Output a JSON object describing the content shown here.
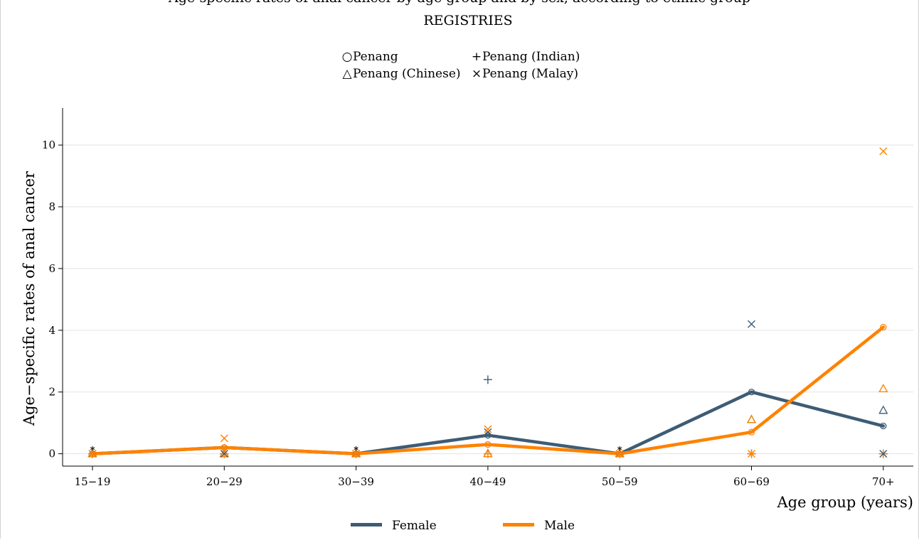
{
  "chart_data": {
    "type": "line",
    "title": "Age-specific rates of anal cancer by age group and by sex, according to ethnic group",
    "subtitle": "REGISTRIES",
    "xlabel": "Age group (years)",
    "ylabel": "Age−specific rates of anal cancer",
    "categories": [
      "15−19",
      "20−29",
      "30−39",
      "40−49",
      "50−59",
      "60−69",
      "70+"
    ],
    "ylim": [
      -0.4,
      11.2
    ],
    "yticks": [
      0,
      2,
      4,
      6,
      8,
      10
    ],
    "grid": true,
    "legend_top": [
      {
        "label": "Penang",
        "symbol": "○"
      },
      {
        "label": "Penang (Indian)",
        "symbol": "+"
      },
      {
        "label": "Penang (Chinese)",
        "symbol": "△"
      },
      {
        "label": "Penang (Malay)",
        "symbol": "×"
      }
    ],
    "series": [
      {
        "name": "Female",
        "color": "#3e5c74",
        "values": [
          0,
          0.2,
          0,
          0.6,
          0,
          2.0,
          0.9
        ]
      },
      {
        "name": "Male",
        "color": "#ff8200",
        "values": [
          0,
          0.2,
          0,
          0.3,
          0,
          0.7,
          4.1
        ]
      }
    ],
    "markers": [
      {
        "group": "Penang (Indian)",
        "sex": "Female",
        "marker": "plus",
        "values": [
          0,
          0,
          0,
          2.4,
          0,
          0,
          0
        ]
      },
      {
        "group": "Penang (Indian)",
        "sex": "Male",
        "marker": "plus",
        "values": [
          0,
          0,
          0,
          0,
          0,
          0,
          0
        ]
      },
      {
        "group": "Penang (Chinese)",
        "sex": "Female",
        "marker": "triangle",
        "values": [
          0,
          0,
          0,
          0,
          0,
          1.1,
          1.4
        ]
      },
      {
        "group": "Penang (Chinese)",
        "sex": "Male",
        "marker": "triangle",
        "values": [
          0,
          0,
          0,
          0,
          0,
          1.1,
          2.1
        ]
      },
      {
        "group": "Penang (Malay)",
        "sex": "Female",
        "marker": "x",
        "values": [
          0,
          0,
          0,
          0.7,
          0,
          4.2,
          0
        ]
      },
      {
        "group": "Penang (Malay)",
        "sex": "Male",
        "marker": "x",
        "values": [
          0,
          0.5,
          0,
          0.8,
          0,
          0,
          9.8
        ]
      }
    ],
    "asterisks": [
      0,
      2,
      4
    ],
    "asterisk_label": "*",
    "legend_bottom": [
      {
        "label": "Female",
        "color": "#3e5c74"
      },
      {
        "label": "Male",
        "color": "#ff8200"
      }
    ]
  }
}
